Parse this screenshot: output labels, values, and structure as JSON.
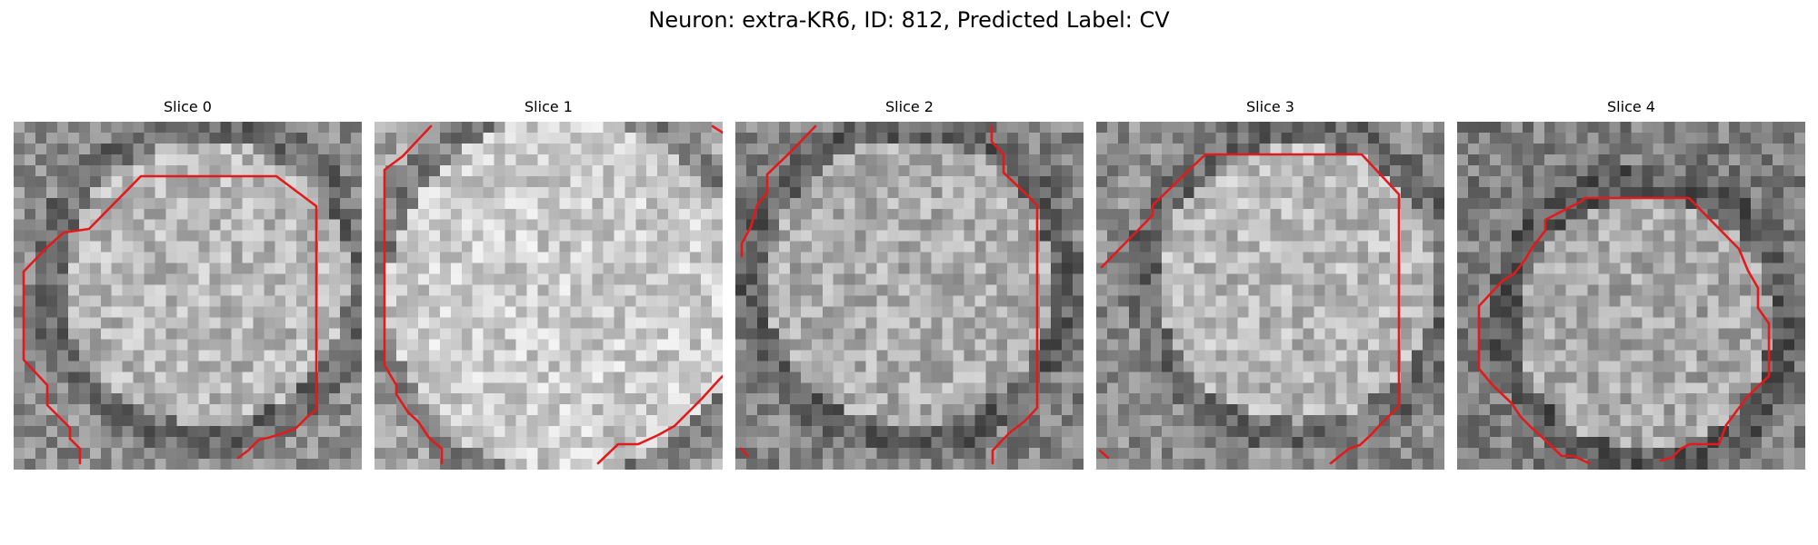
{
  "figure": {
    "title": "Neuron: extra-KR6, ID: 812, Predicted Label: CV"
  },
  "colors": {
    "background": "#ffffff",
    "contour": "#e31a1c",
    "colormap": "grayscale"
  },
  "slices": [
    {
      "label": "Slice 0"
    },
    {
      "label": "Slice 1"
    },
    {
      "label": "Slice 2"
    },
    {
      "label": "Slice 3"
    },
    {
      "label": "Slice 4"
    }
  ]
}
